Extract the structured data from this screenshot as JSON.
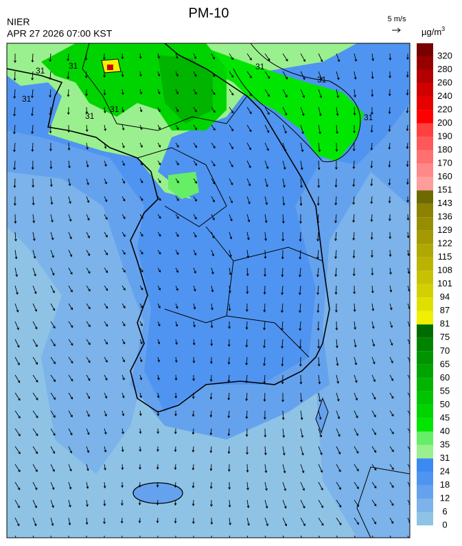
{
  "header": {
    "title": "PM-10",
    "agency": "NIER",
    "timestamp": "APR 27 2026 07:00 KST"
  },
  "wind_legend": {
    "label": "5 m/s"
  },
  "colorbar": {
    "unit": "µg/m",
    "unit_sup": "3",
    "levels": [
      0,
      6,
      12,
      18,
      24,
      31,
      35,
      40,
      45,
      50,
      55,
      60,
      65,
      70,
      75,
      81,
      87,
      94,
      101,
      108,
      115,
      122,
      129,
      136,
      143,
      151,
      160,
      170,
      180,
      190,
      200,
      220,
      240,
      260,
      280,
      320
    ],
    "colors": [
      "#8ec3e6",
      "#7bb3ea",
      "#65a2ee",
      "#4f94f0",
      "#3a8af2",
      "#9af08e",
      "#66ee66",
      "#00e600",
      "#00d400",
      "#00c400",
      "#00b400",
      "#00a400",
      "#009400",
      "#008400",
      "#006c00",
      "#f0f000",
      "#e0e000",
      "#d2d000",
      "#c6c200",
      "#bab400",
      "#aea800",
      "#a29a00",
      "#968e00",
      "#8a8200",
      "#6e6a00",
      "#ff9c9c",
      "#ff8888",
      "#ff7070",
      "#ff5858",
      "#ff4040",
      "#ff0000",
      "#e80000",
      "#d00000",
      "#b40000",
      "#980000",
      "#780000"
    ]
  },
  "map": {
    "contour_label": "31"
  }
}
